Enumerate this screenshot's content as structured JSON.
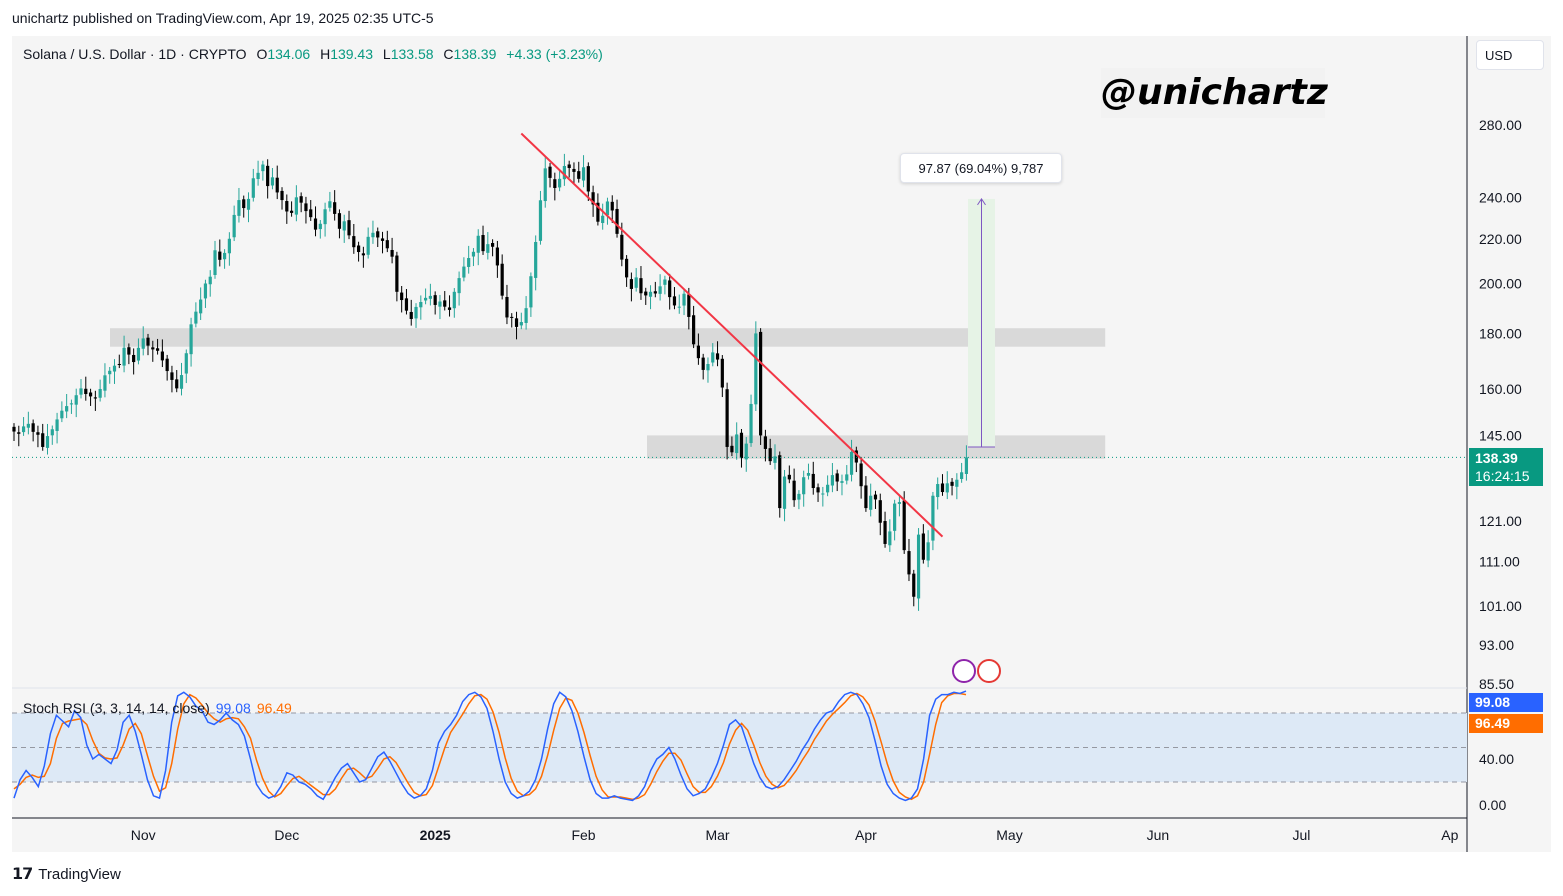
{
  "header": {
    "published": "unichartz published on TradingView.com, Apr 19, 2025 02:35 UTC-5"
  },
  "legend": {
    "symbol": "Solana / U.S. Dollar · 1D · CRYPTO",
    "open_label": "O",
    "open": "134.06",
    "high_label": "H",
    "high": "139.43",
    "low_label": "L",
    "low": "133.58",
    "close_label": "C",
    "close": "138.39",
    "change": "+4.33 (+3.23%)"
  },
  "currency_button": "USD",
  "watermark": "@unichartz",
  "measure_label": "97.87 (69.04%) 9,787",
  "price_tag": {
    "price": "138.39",
    "countdown": "16:24:15"
  },
  "rsi": {
    "label": "Stoch RSI (3, 3, 14, 14, close)",
    "k_value": "99.08",
    "d_value": "96.49"
  },
  "footer": {
    "brand": "TradingView"
  },
  "colors": {
    "up": "#26a69a",
    "down": "#000000",
    "trendline": "#f23645",
    "zone": "#d9d9d9",
    "k_line": "#2962ff",
    "d_line": "#ff6d00",
    "measure": "#e6f3e6"
  },
  "chart_data": {
    "type": "candlestick",
    "title": "Solana / U.S. Dollar · 1D · CRYPTO",
    "scale": "log",
    "price_ticks": [
      280,
      240,
      220,
      200,
      180,
      160,
      145,
      121,
      111,
      101,
      93,
      85.5
    ],
    "price_tick_labels": [
      "280.00",
      "240.00",
      "220.00",
      "200.00",
      "180.00",
      "160.00",
      "145.00",
      "121.00",
      "111.00",
      "101.00",
      "93.00",
      "85.50"
    ],
    "time_labels": [
      "Nov",
      "Dec",
      "2025",
      "Feb",
      "Mar",
      "Apr",
      "May",
      "Jun",
      "Jul",
      "Ap"
    ],
    "start_date": "2024-10-05",
    "end_date": "2025-04-19",
    "closes": [
      146.2,
      145.5,
      147.8,
      148.6,
      146.1,
      145.2,
      141.5,
      144.8,
      146.9,
      150.0,
      152.8,
      154.3,
      155.2,
      157.9,
      160.2,
      158.3,
      157.5,
      156.8,
      160.0,
      164.7,
      166.3,
      168.1,
      168.6,
      174.6,
      172.1,
      169.4,
      174.6,
      178.1,
      175.4,
      174.0,
      173.5,
      170.0,
      166.2,
      163.1,
      160.2,
      164.8,
      172.6,
      183.5,
      188.5,
      193.4,
      200.1,
      203.0,
      214.7,
      210.4,
      213.5,
      220.0,
      231.4,
      238.8,
      234.8,
      239.4,
      250.1,
      253.0,
      257.5,
      246.0,
      250.6,
      242.7,
      238.8,
      233.1,
      232.4,
      240.2,
      237.5,
      233.3,
      230.3,
      224.3,
      227.1,
      234.2,
      238.2,
      231.9,
      224.7,
      228.3,
      221.6,
      216.1,
      213.9,
      212.4,
      220.9,
      222.8,
      220.6,
      219.0,
      215.6,
      211.8,
      196.6,
      193.2,
      188.9,
      185.6,
      190.4,
      192.4,
      194.1,
      194.9,
      191.2,
      192.6,
      190.5,
      189.2,
      196.6,
      202.4,
      207.4,
      211.2,
      214.0,
      221.4,
      214.3,
      217.5,
      216.3,
      207.9,
      195.0,
      186.2,
      186.0,
      182.5,
      184.4,
      189.9,
      203.2,
      218.5,
      238.7,
      255.4,
      250.3,
      245.0,
      249.8,
      256.7,
      255.6,
      253.5,
      249.8,
      256.0,
      243.2,
      236.6,
      228.1,
      231.0,
      238.1,
      233.6,
      222.3,
      210.5,
      202.7,
      197.8,
      202.7,
      196.0,
      195.1,
      196.6,
      195.9,
      198.9,
      201.8,
      194.4,
      191.0,
      190.5,
      195.8,
      186.4,
      175.9,
      170.8,
      166.6,
      168.7,
      172.9,
      170.3,
      160.5,
      141.5,
      139.9,
      145.3,
      138.2,
      142.5,
      155.0,
      180.0,
      145.0,
      140.9,
      137.3,
      138.7,
      124.3,
      132.9,
      132.1,
      126.4,
      128.1,
      132.7,
      133.9,
      129.7,
      128.5,
      128.2,
      130.6,
      133.3,
      131.5,
      131.6,
      133.5,
      140.0,
      136.9,
      130.2,
      124.3,
      127.6,
      126.6,
      120.5,
      115.2,
      118.3,
      125.5,
      125.9,
      113.7,
      108.0,
      103.0,
      117.5,
      111.4,
      115.6,
      127.6,
      130.8,
      128.6,
      131.0,
      130.3,
      132.0,
      134.1,
      138.4
    ],
    "stoch_rsi": {
      "k": [
        6,
        22,
        30,
        24,
        16,
        34,
        62,
        78,
        73,
        68,
        82,
        76,
        52,
        40,
        44,
        40,
        36,
        48,
        72,
        78,
        64,
        44,
        22,
        8,
        6,
        30,
        72,
        95,
        98,
        94,
        86,
        82,
        72,
        70,
        74,
        80,
        74,
        70,
        60,
        40,
        18,
        10,
        6,
        8,
        16,
        28,
        26,
        20,
        18,
        14,
        8,
        5,
        14,
        24,
        32,
        36,
        28,
        20,
        22,
        32,
        42,
        46,
        38,
        28,
        18,
        10,
        6,
        8,
        14,
        30,
        54,
        64,
        70,
        78,
        90,
        96,
        98,
        94,
        84,
        64,
        40,
        20,
        10,
        6,
        8,
        12,
        22,
        40,
        66,
        88,
        98,
        94,
        82,
        64,
        42,
        22,
        10,
        6,
        6,
        8,
        6,
        5,
        4,
        8,
        16,
        30,
        40,
        44,
        50,
        40,
        26,
        14,
        8,
        10,
        14,
        24,
        36,
        52,
        70,
        74,
        68,
        52,
        36,
        24,
        16,
        14,
        16,
        22,
        30,
        38,
        48,
        56,
        66,
        74,
        80,
        82,
        90,
        96,
        98,
        96,
        88,
        76,
        56,
        34,
        18,
        10,
        6,
        4,
        6,
        14,
        40,
        78,
        92,
        96,
        96,
        98,
        97,
        99
      ],
      "d": [
        14,
        18,
        24,
        26,
        24,
        25,
        36,
        58,
        71,
        73,
        74,
        75,
        70,
        56,
        45,
        41,
        40,
        41,
        52,
        66,
        71,
        62,
        43,
        25,
        12,
        15,
        36,
        66,
        88,
        96,
        93,
        87,
        80,
        75,
        72,
        75,
        76,
        75,
        68,
        58,
        39,
        23,
        12,
        7,
        10,
        17,
        23,
        25,
        21,
        17,
        13,
        9,
        9,
        14,
        23,
        31,
        32,
        28,
        23,
        25,
        32,
        40,
        42,
        37,
        28,
        19,
        11,
        8,
        9,
        17,
        33,
        49,
        63,
        71,
        79,
        88,
        95,
        96,
        92,
        81,
        63,
        41,
        23,
        12,
        8,
        9,
        14,
        25,
        43,
        65,
        84,
        93,
        91,
        80,
        63,
        43,
        25,
        13,
        7,
        7,
        7,
        6,
        5,
        6,
        9,
        18,
        29,
        38,
        45,
        45,
        39,
        27,
        16,
        11,
        11,
        16,
        25,
        37,
        53,
        65,
        71,
        65,
        52,
        37,
        25,
        18,
        15,
        17,
        23,
        30,
        39,
        47,
        57,
        65,
        73,
        79,
        84,
        89,
        95,
        97,
        94,
        87,
        73,
        55,
        36,
        21,
        11,
        7,
        5,
        8,
        20,
        44,
        70,
        89,
        95,
        97,
        97,
        96
      ]
    },
    "resistance_zone": [
      175,
      182
    ],
    "support_zone": [
      138,
      145
    ],
    "trendline": {
      "from": [
        "2025-01-19",
        275
      ],
      "to": [
        "2025-04-17",
        117
      ]
    },
    "measure": {
      "from": 141.5,
      "to": 239.4,
      "change": "97.87 (69.04%) 9,787"
    },
    "rsi_ticks": [
      "40.00",
      "0.00"
    ]
  }
}
